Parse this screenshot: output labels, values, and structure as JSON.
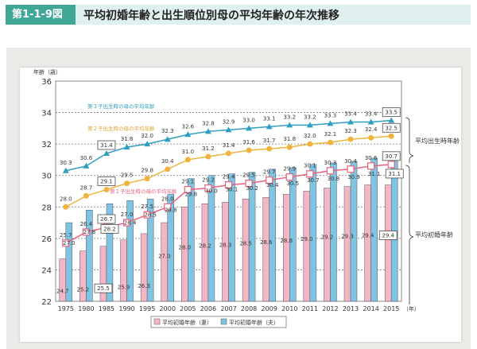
{
  "header": {
    "figure_no": "第1-1-9図",
    "title": "平均初婚年齢と出生順位別母の平均年齢の年次推移"
  },
  "chart_data": {
    "type": "bar+line",
    "ylabel": "年齢（歳）",
    "xunit": "（年）",
    "ylim": [
      22,
      36
    ],
    "yticks": [
      22,
      24,
      26,
      28,
      30,
      32,
      34,
      36
    ],
    "grid": true,
    "categories": [
      "1975",
      "1980",
      "1985",
      "1990",
      "1995",
      "2000",
      "2005",
      "2006",
      "2007",
      "2008",
      "2009",
      "2010",
      "2011",
      "2012",
      "2013",
      "2014",
      "2015"
    ],
    "bars": [
      {
        "name": "平均初婚年齢（妻）",
        "color": "#f4b6c2",
        "values": [
          24.7,
          25.2,
          25.5,
          25.9,
          26.3,
          27.0,
          28.0,
          28.2,
          28.3,
          28.5,
          28.6,
          28.8,
          29.0,
          29.2,
          29.3,
          29.4,
          29.4
        ]
      },
      {
        "name": "平均初婚年齢（夫）",
        "color": "#7fc4e0",
        "values": [
          27.0,
          27.8,
          28.2,
          28.4,
          28.5,
          28.8,
          29.8,
          30.0,
          30.1,
          30.2,
          30.4,
          30.5,
          30.7,
          30.8,
          30.9,
          31.1,
          31.1
        ]
      }
    ],
    "lines": [
      {
        "name": "第１子出生時の母の平均年齢",
        "color": "#e8627d",
        "marker": "square",
        "values": [
          25.7,
          26.4,
          26.7,
          27.0,
          27.5,
          28.0,
          29.1,
          29.2,
          29.4,
          29.5,
          29.7,
          29.9,
          30.1,
          30.3,
          30.4,
          30.6,
          30.7
        ]
      },
      {
        "name": "第２子出生時の母の平均年齢",
        "color": "#f0b43c",
        "marker": "circle",
        "values": [
          28.0,
          28.7,
          29.1,
          29.5,
          29.8,
          30.4,
          31.0,
          31.2,
          31.4,
          31.6,
          31.7,
          31.8,
          32.0,
          32.1,
          32.3,
          32.4,
          32.5
        ]
      },
      {
        "name": "第３子出生時の母の平均年齢",
        "color": "#2e9fbf",
        "marker": "triangle",
        "values": [
          30.3,
          30.6,
          31.4,
          31.8,
          32.0,
          32.3,
          32.6,
          32.8,
          32.9,
          33.0,
          33.1,
          33.2,
          33.2,
          33.3,
          33.4,
          33.4,
          33.5
        ]
      }
    ],
    "brace_labels": [
      "平均出生時年齢",
      "平均初婚年齢"
    ],
    "legend": "bottom"
  }
}
